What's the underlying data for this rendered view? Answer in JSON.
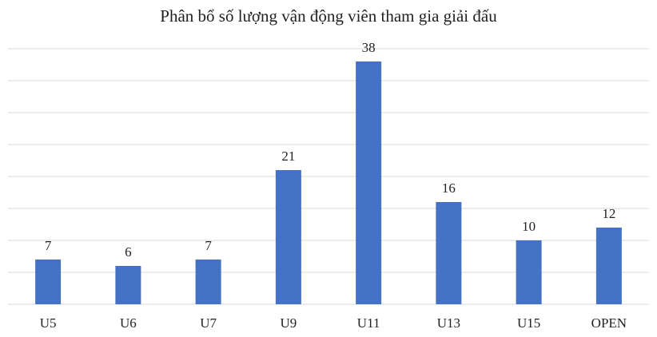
{
  "chart_data": {
    "type": "bar",
    "title": "Phân bổ số lượng vận động viên tham gia giải đấu",
    "categories": [
      "U5",
      "U6",
      "U7",
      "U9",
      "U11",
      "U13",
      "U15",
      "OPEN"
    ],
    "values": [
      7,
      6,
      7,
      21,
      38,
      16,
      10,
      12
    ],
    "color": "#4472c4",
    "ylim": [
      0,
      40
    ],
    "yticks": [
      0,
      5,
      10,
      15,
      20,
      25,
      30,
      35,
      40
    ],
    "grid": true
  }
}
